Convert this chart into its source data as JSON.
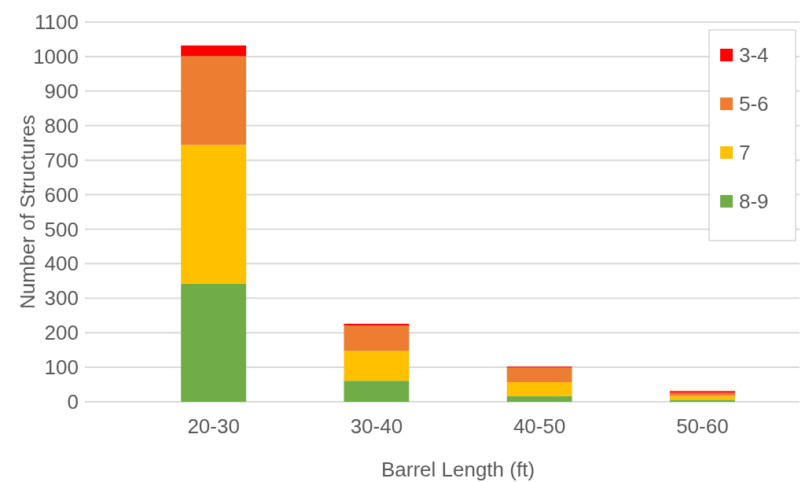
{
  "chart_data": {
    "type": "bar",
    "xlabel": "Barrel Length (ft)",
    "ylabel": "Number of Structures",
    "categories": [
      "20-30",
      "30-40",
      "40-50",
      "50-60"
    ],
    "stacked": true,
    "series": [
      {
        "name": "8-9",
        "color": "#70ad47",
        "values": [
          342,
          61,
          17,
          6
        ]
      },
      {
        "name": "7",
        "color": "#ffc000",
        "values": [
          402,
          86,
          40,
          11
        ]
      },
      {
        "name": "5-6",
        "color": "#ed7d31",
        "values": [
          257,
          74,
          42,
          9
        ]
      },
      {
        "name": "3-4",
        "color": "#ff0000",
        "values": [
          31,
          5,
          3,
          5
        ]
      }
    ],
    "ylim": [
      0,
      1100
    ],
    "yticks": [
      0,
      100,
      200,
      300,
      400,
      500,
      600,
      700,
      800,
      900,
      1000,
      1100
    ],
    "grid": "y",
    "legend": "top right"
  }
}
